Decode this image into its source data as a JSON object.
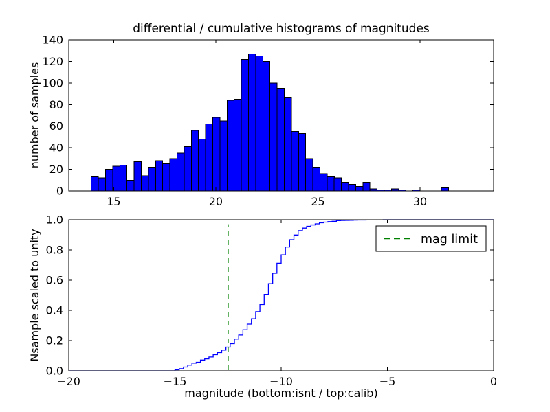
{
  "figure": {
    "background": "#ffffff",
    "bar_color": "#0000ff",
    "bar_edge": "#000000",
    "line_color": "#0000ff",
    "mag_limit_color": "#008000"
  },
  "chart_data": [
    {
      "type": "bar",
      "title": "differential / cumulative histograms of magnitudes",
      "ylabel": "number of samples",
      "xlim": [
        12.8,
        33.6
      ],
      "ylim": [
        0,
        140
      ],
      "xticks": [
        15,
        20,
        25,
        30
      ],
      "xtick_labels": [
        "15",
        "20",
        "25",
        "30"
      ],
      "yticks": [
        0,
        20,
        40,
        60,
        80,
        100,
        120,
        140
      ],
      "ytick_labels": [
        "0",
        "20",
        "40",
        "60",
        "80",
        "100",
        "120",
        "140"
      ],
      "grid": false,
      "bins_start": 13.9,
      "bin_width": 0.35,
      "counts": [
        13,
        12,
        20,
        23,
        24,
        10,
        27,
        14,
        22,
        28,
        25,
        30,
        35,
        41,
        56,
        48,
        62,
        68,
        65,
        84,
        85,
        122,
        127,
        125,
        120,
        100,
        95,
        87,
        55,
        53,
        30,
        22,
        16,
        13,
        12,
        8,
        6,
        4,
        8,
        2,
        1,
        1,
        2,
        1,
        0,
        1,
        0,
        0,
        0,
        3
      ]
    },
    {
      "type": "line",
      "ylabel": "Nsample scaled to unity",
      "xlabel": "magnitude (bottom:isnt / top:calib)",
      "xlim": [
        -20,
        0
      ],
      "ylim": [
        0,
        1
      ],
      "xticks": [
        -20,
        -15,
        -10,
        -5,
        0
      ],
      "xtick_labels": [
        "−20",
        "−15",
        "−10",
        "−5",
        "0"
      ],
      "yticks": [
        0,
        0.2,
        0.4,
        0.6,
        0.8,
        1.0
      ],
      "ytick_labels": [
        "0.0",
        "0.2",
        "0.4",
        "0.6",
        "0.8",
        "1.0"
      ],
      "grid": false,
      "description": "cumulative histogram of the same sample scaled to unity",
      "bins_start": -15.0,
      "bin_width": 0.2,
      "counts_ref": 0,
      "mag_limit_x": -12.5,
      "legend": {
        "label": "mag limit",
        "position": "upper right",
        "line_style": "dashed"
      }
    }
  ]
}
